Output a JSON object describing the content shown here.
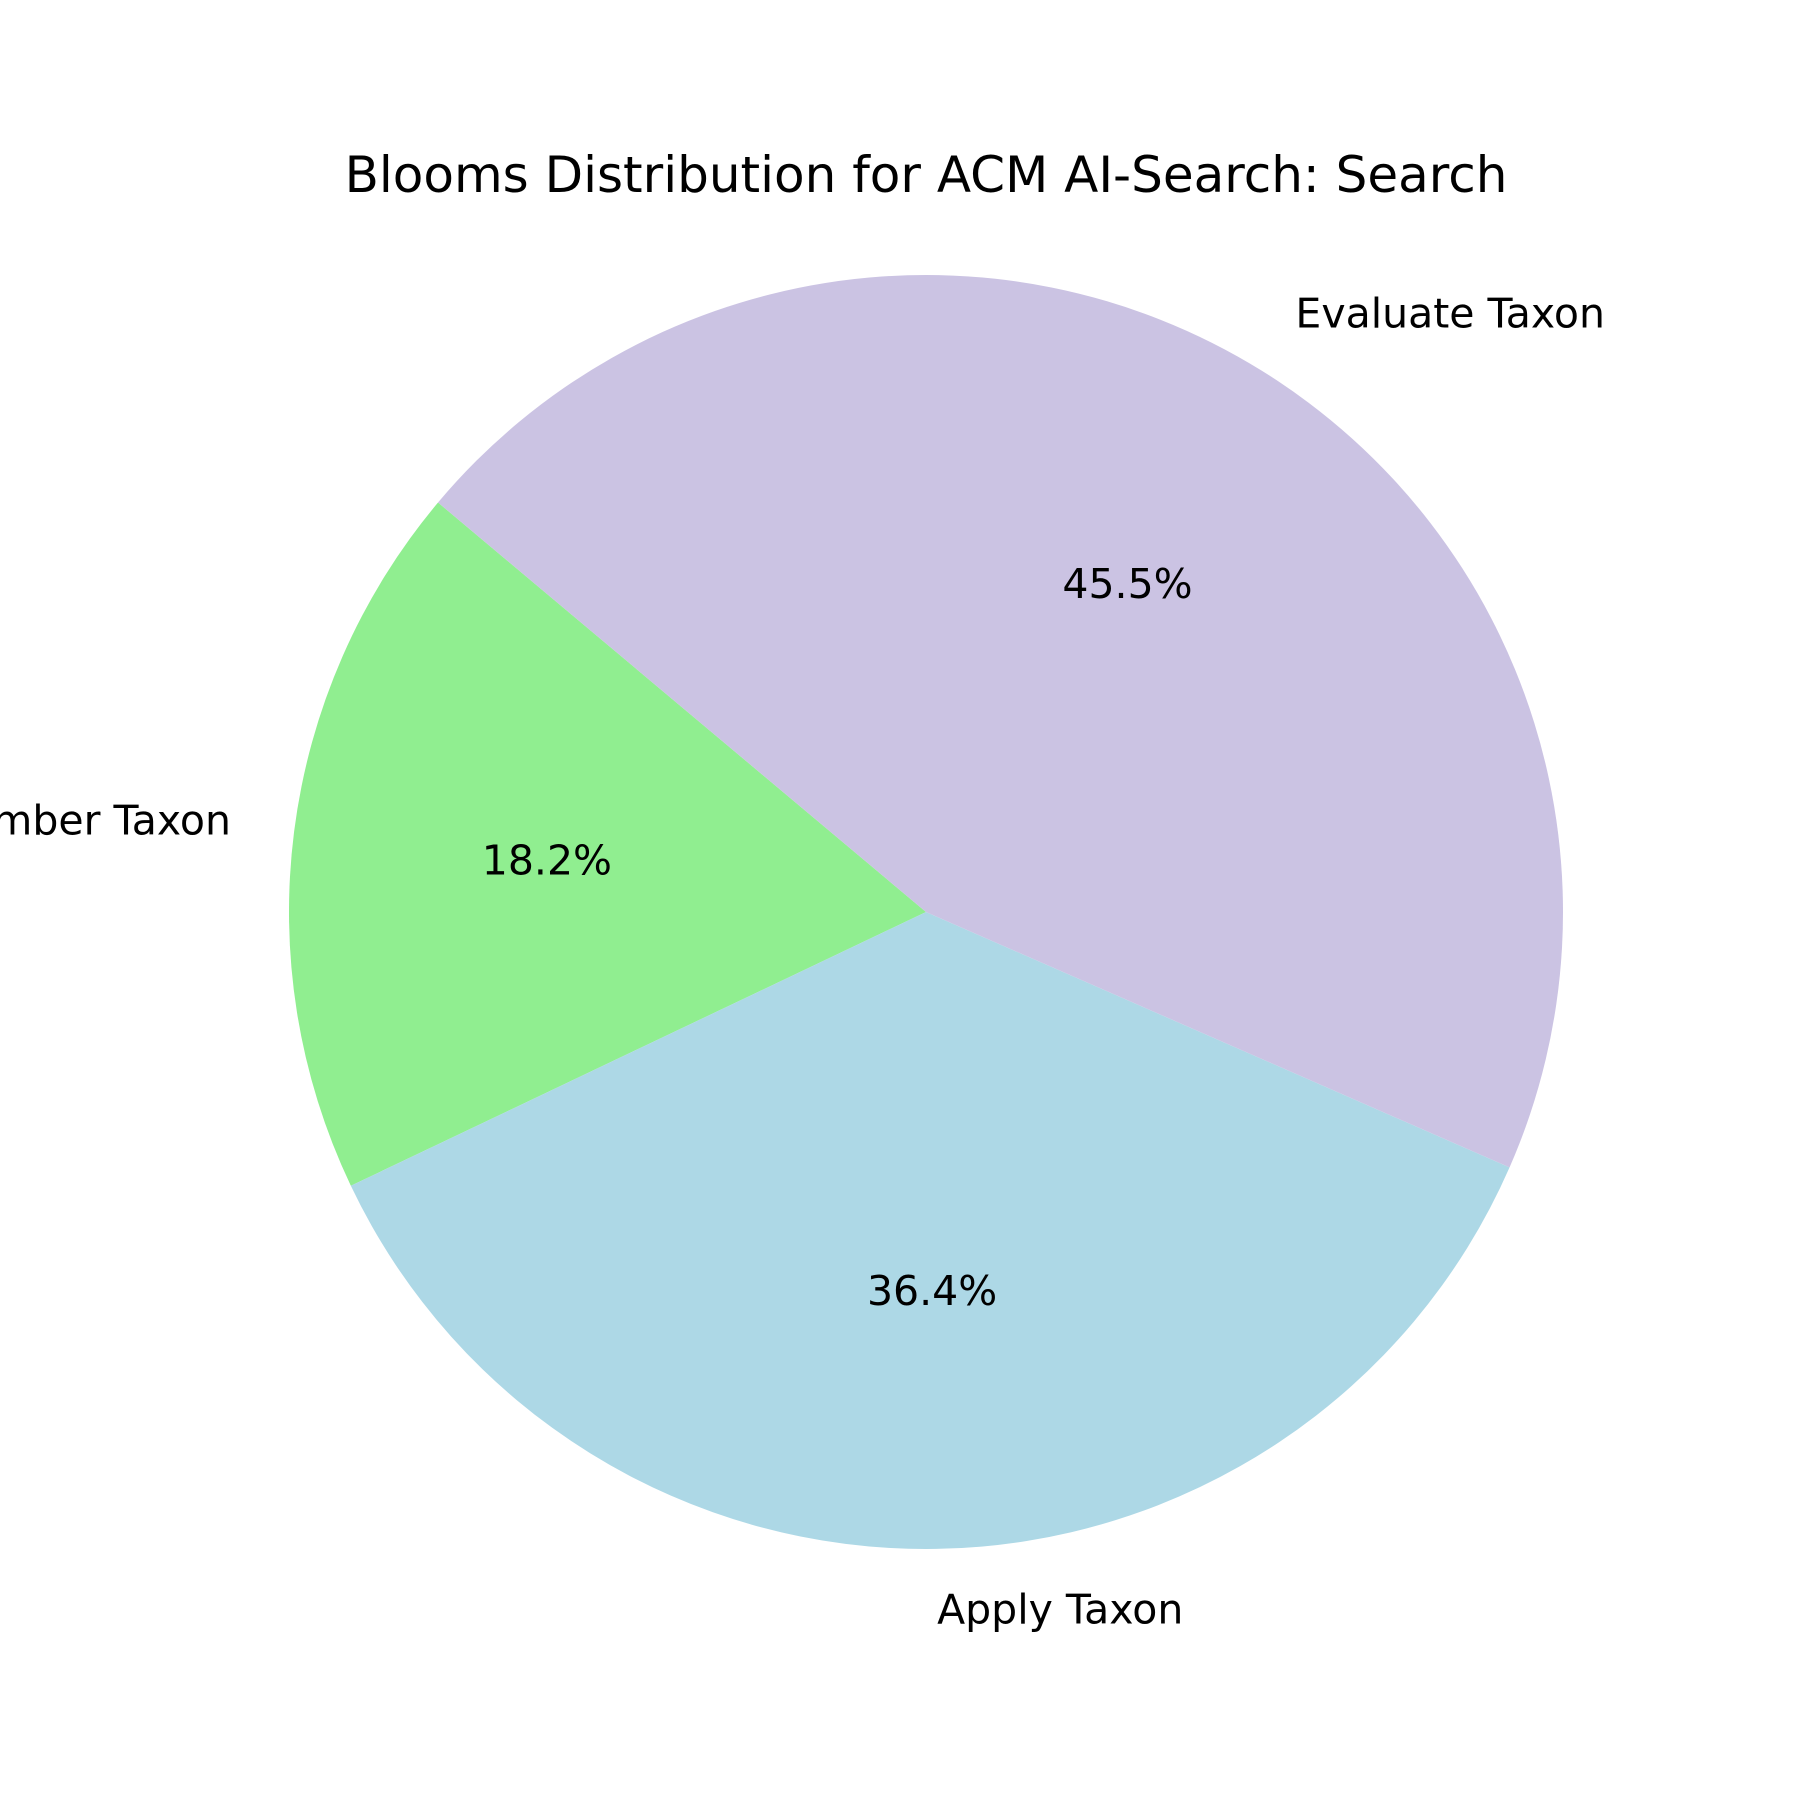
{
  "chart_data": {
    "type": "pie",
    "title": "Blooms Distribution for ACM AI-Search: Search",
    "categories": [
      "Remember Taxon",
      "Apply Taxon",
      "Evaluate Taxon"
    ],
    "values": [
      18.2,
      36.4,
      45.5
    ],
    "percent_labels": [
      "18.2%",
      "36.4%",
      "45.5%"
    ],
    "colors": [
      "#90ee90",
      "#add8e6",
      "#cbc3e3"
    ],
    "start_angle_deg": 140,
    "direction": "counterclockwise",
    "legend": "none"
  }
}
